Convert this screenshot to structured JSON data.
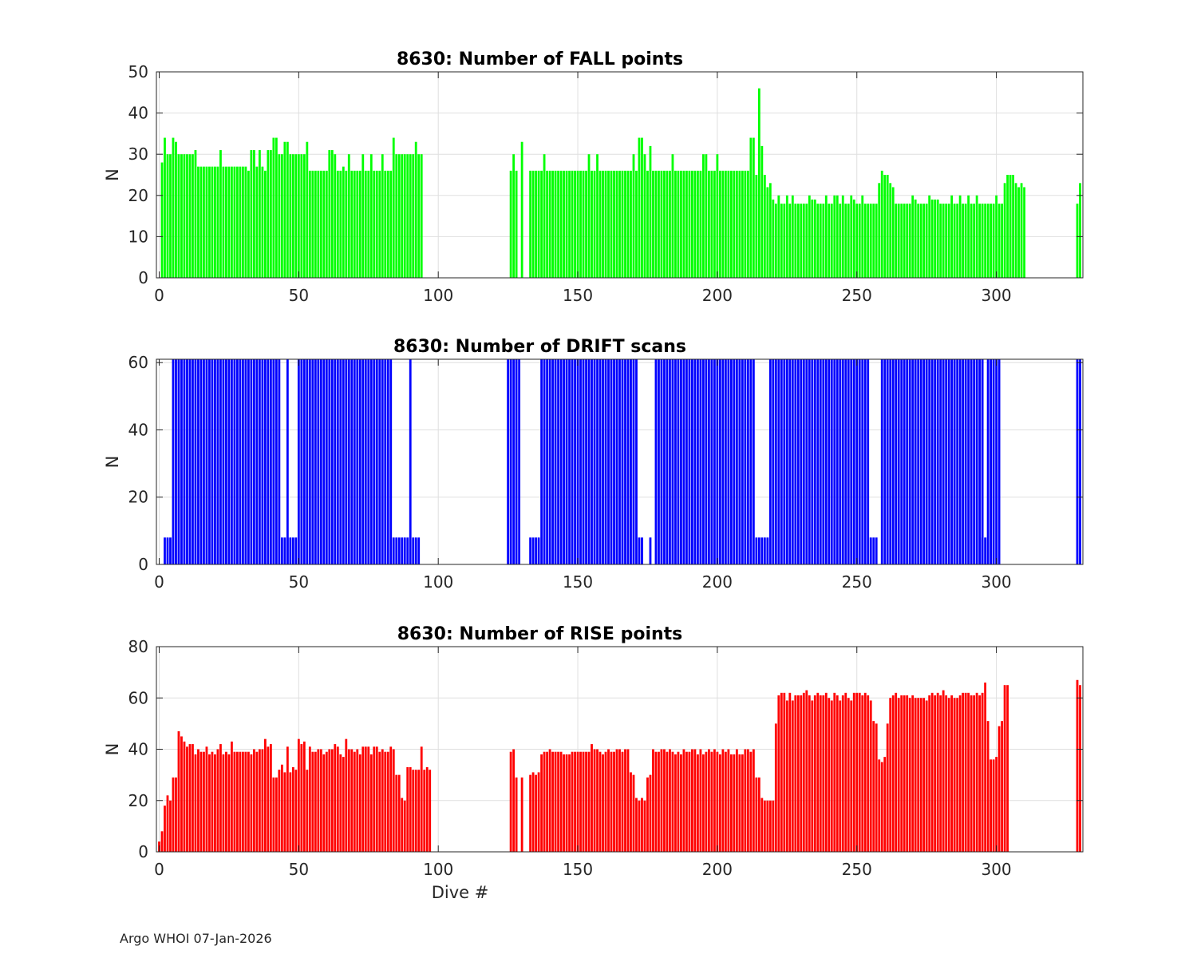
{
  "footer": "Argo WHOI 07-Jan-2026",
  "colors": {
    "fall": "#00ff00",
    "drift": "#0000ff",
    "rise": "#ff0000",
    "grid": "#dfdfdf",
    "axis": "#262626"
  },
  "chart_data": [
    {
      "type": "bar",
      "title": "8630: Number of FALL points",
      "xlabel": "",
      "ylabel": "N",
      "xlim": [
        -1,
        331
      ],
      "ylim": [
        0,
        50
      ],
      "xticks": [
        0,
        50,
        100,
        150,
        200,
        250,
        300
      ],
      "yticks": [
        0,
        10,
        20,
        30,
        40,
        50
      ],
      "color": "#00ff00",
      "segments": [
        {
          "start": 1,
          "values": [
            28,
            34,
            30,
            30,
            34,
            33,
            30,
            30,
            30,
            30,
            30,
            30,
            31,
            27,
            27,
            27,
            27,
            27,
            27,
            27,
            27,
            31,
            27,
            27,
            27,
            27,
            27,
            27,
            27,
            27,
            27,
            26,
            31,
            31,
            27,
            31,
            27,
            26,
            31,
            31,
            34,
            34,
            30,
            30,
            33,
            33,
            30,
            30,
            30,
            30,
            30,
            30,
            33,
            26,
            26,
            26,
            26,
            26,
            26,
            26,
            31,
            31,
            30,
            26,
            26,
            27,
            26,
            30,
            26,
            26,
            26,
            26,
            30,
            26,
            26,
            30,
            26,
            26,
            26,
            30,
            26,
            26,
            26,
            34,
            30,
            30,
            30,
            30,
            30,
            30,
            30,
            33,
            30,
            30
          ]
        },
        {
          "start": 126,
          "values": [
            26,
            30,
            26
          ]
        },
        {
          "start": 130,
          "values": [
            33
          ]
        },
        {
          "start": 133,
          "values": [
            26,
            26,
            26,
            26,
            26,
            30,
            26,
            26,
            26,
            26,
            26,
            26,
            26,
            26,
            26,
            26,
            26,
            26,
            26,
            26,
            26,
            30,
            26,
            26,
            30,
            26,
            26,
            26,
            26,
            26,
            26,
            26,
            26,
            26,
            26,
            26,
            26,
            30,
            26,
            34,
            34,
            30,
            26,
            32,
            26,
            26,
            26,
            26,
            26,
            26,
            26,
            30,
            26,
            26,
            26,
            26,
            26,
            26,
            26,
            26,
            26,
            26,
            30,
            30,
            26,
            26,
            26,
            30,
            26,
            26,
            26,
            26,
            26,
            26,
            26,
            26,
            26,
            26,
            26,
            34,
            34,
            25,
            46,
            32,
            25,
            22,
            23,
            19,
            18,
            20,
            18,
            18,
            20,
            18,
            20,
            18,
            18,
            18,
            18,
            18,
            20,
            19,
            19,
            18,
            18,
            18,
            20,
            18,
            18,
            20,
            20,
            18,
            20,
            18,
            18,
            20,
            19,
            18,
            18,
            20,
            18,
            18,
            18,
            18,
            18,
            23,
            26,
            25,
            25,
            23,
            22,
            18,
            18,
            18,
            18,
            18,
            18,
            20,
            19,
            18,
            18,
            18,
            18,
            20,
            19,
            19,
            19,
            18,
            18,
            18,
            18,
            20,
            18,
            18,
            20,
            18,
            18,
            20,
            18,
            18,
            20,
            18,
            18,
            18,
            18,
            18,
            18,
            20,
            18,
            18,
            23,
            25,
            25,
            25,
            23,
            22,
            23,
            22
          ]
        },
        {
          "start": 329,
          "values": [
            18,
            23
          ]
        }
      ]
    },
    {
      "type": "bar",
      "title": "8630: Number of DRIFT scans",
      "xlabel": "",
      "ylabel": "N",
      "xlim": [
        -1,
        331
      ],
      "ylim": [
        0,
        61
      ],
      "xticks": [
        0,
        50,
        100,
        150,
        200,
        250,
        300
      ],
      "yticks": [
        0,
        20,
        40,
        60
      ],
      "color": "#0000ff",
      "segments": [
        {
          "start": 2,
          "values": [
            8,
            8,
            8
          ]
        },
        {
          "start": 5,
          "values": [
            61,
            61,
            61,
            61,
            61,
            61,
            61,
            61,
            61,
            61,
            61,
            61,
            61,
            61,
            61,
            61,
            61,
            61,
            61,
            61,
            61,
            61,
            61,
            61,
            61,
            61,
            61,
            61,
            61,
            61,
            61,
            61,
            61,
            61,
            61,
            61,
            61,
            61,
            61
          ]
        },
        {
          "start": 44,
          "values": [
            8,
            8,
            8
          ]
        },
        {
          "start": 46,
          "values": [
            61
          ]
        },
        {
          "start": 47,
          "values": [
            8,
            8,
            8
          ]
        },
        {
          "start": 50,
          "values": [
            61,
            61,
            61,
            61,
            61,
            61,
            61,
            61,
            61,
            61,
            61,
            61,
            61,
            61,
            61,
            61,
            61,
            61,
            61,
            61,
            61,
            61,
            61,
            61,
            61,
            61,
            61,
            61,
            61,
            61,
            61,
            61,
            61,
            61
          ]
        },
        {
          "start": 84,
          "values": [
            8,
            8,
            8,
            8,
            8,
            8
          ]
        },
        {
          "start": 90,
          "values": [
            61
          ]
        },
        {
          "start": 91,
          "values": [
            8,
            8,
            8
          ]
        },
        {
          "start": 125,
          "values": [
            61,
            61,
            61,
            61,
            61
          ]
        },
        {
          "start": 133,
          "values": [
            8,
            8,
            8,
            8
          ]
        },
        {
          "start": 137,
          "values": [
            61,
            61,
            61,
            61,
            61,
            61,
            61,
            61,
            61,
            61,
            61,
            61,
            61,
            61,
            61,
            61,
            61,
            61,
            61,
            61,
            61,
            61,
            61,
            61,
            61,
            61,
            61,
            61,
            61,
            61,
            61,
            61,
            61,
            61,
            61
          ]
        },
        {
          "start": 172,
          "values": [
            8,
            8
          ]
        },
        {
          "start": 176,
          "values": [
            8
          ]
        },
        {
          "start": 178,
          "values": [
            61,
            61,
            61,
            61,
            61,
            61,
            61,
            61,
            61,
            61,
            61,
            61,
            61,
            61,
            61,
            61,
            61,
            61,
            61,
            61,
            61,
            61,
            61,
            61,
            61,
            61,
            61,
            61,
            61,
            61,
            61,
            61,
            61,
            61,
            61,
            61
          ]
        },
        {
          "start": 214,
          "values": [
            8,
            8,
            8,
            8,
            8
          ]
        },
        {
          "start": 219,
          "values": [
            61,
            61,
            61,
            61,
            61,
            61,
            61,
            61,
            61,
            61,
            61,
            61,
            61,
            61,
            61,
            61,
            61,
            61,
            61,
            61,
            61,
            61,
            61,
            61,
            61,
            61,
            61,
            61,
            61,
            61,
            61,
            61,
            61,
            61,
            61,
            61
          ]
        },
        {
          "start": 255,
          "values": [
            8,
            8,
            8
          ]
        },
        {
          "start": 259,
          "values": [
            61,
            61,
            61,
            61,
            61,
            61,
            61,
            61,
            61,
            61,
            61,
            61,
            61,
            61,
            61,
            61,
            61,
            61,
            61,
            61,
            61,
            61,
            61,
            61,
            61,
            61,
            61,
            61,
            61,
            61,
            61,
            61,
            61,
            61,
            61,
            61,
            61
          ]
        },
        {
          "start": 295,
          "values": [
            8,
            8,
            8
          ]
        },
        {
          "start": 297,
          "values": [
            61,
            61,
            61,
            61,
            61
          ]
        },
        {
          "start": 329,
          "values": [
            61,
            61
          ]
        }
      ]
    },
    {
      "type": "bar",
      "title": "8630: Number of RISE points",
      "xlabel": "Dive #",
      "ylabel": "N",
      "xlim": [
        -1,
        331
      ],
      "ylim": [
        0,
        80
      ],
      "xticks": [
        0,
        50,
        100,
        150,
        200,
        250,
        300
      ],
      "yticks": [
        0,
        20,
        40,
        60,
        80
      ],
      "color": "#ff0000",
      "segments": [
        {
          "start": 0,
          "values": [
            4,
            8,
            18,
            22,
            20,
            29,
            29,
            47,
            45,
            43,
            41,
            42,
            42,
            38,
            40,
            39,
            39,
            41,
            38,
            39,
            38,
            40,
            42,
            38,
            39,
            38,
            43,
            39,
            39,
            39,
            39,
            39,
            39,
            38,
            40,
            39,
            40,
            40,
            44,
            41,
            42,
            29,
            29,
            32,
            34,
            31,
            41,
            31,
            33,
            32,
            44,
            42,
            43,
            32,
            41,
            39,
            39,
            40,
            40,
            38,
            39,
            40,
            40,
            42,
            41,
            38,
            37,
            44,
            40,
            40,
            39,
            40,
            38,
            41,
            41,
            41,
            38,
            41,
            41,
            39,
            40,
            39,
            39,
            41,
            40,
            30,
            30,
            21,
            20,
            33,
            33,
            32,
            32,
            32,
            41,
            32,
            33,
            32
          ]
        },
        {
          "start": 126,
          "values": [
            39,
            40
          ]
        },
        {
          "start": 128,
          "values": [
            29
          ]
        },
        {
          "start": 130,
          "values": [
            29
          ]
        },
        {
          "start": 133,
          "values": [
            30,
            31,
            30,
            31,
            38,
            39,
            39,
            40,
            39,
            39,
            39,
            39,
            38,
            38,
            38,
            39,
            39,
            39,
            39,
            39,
            39,
            39,
            42,
            40,
            40,
            39,
            38,
            39,
            40,
            39,
            39,
            40,
            40,
            39,
            40,
            40,
            31,
            30,
            21,
            20,
            21,
            20,
            29,
            30,
            40,
            39,
            39,
            40,
            40,
            39,
            40,
            39,
            38,
            39,
            38,
            40,
            39,
            39,
            40,
            40,
            38,
            40,
            38,
            39,
            40,
            39,
            40,
            39,
            38,
            40,
            39,
            40,
            38,
            38,
            40,
            38,
            38,
            40,
            40,
            39,
            40,
            29,
            29,
            21,
            20,
            20,
            20,
            20,
            50,
            61,
            62,
            62,
            59,
            62,
            59,
            61,
            61,
            61,
            62,
            63,
            61,
            59,
            61,
            62,
            61,
            61,
            62,
            60,
            59,
            62,
            61,
            59,
            61,
            62,
            60,
            59,
            62,
            62,
            62,
            61,
            62,
            61,
            59,
            51,
            50,
            36,
            35,
            37,
            50,
            60,
            61,
            62,
            60,
            61,
            61,
            61,
            60,
            61,
            60,
            60,
            60,
            60,
            59,
            61,
            62,
            61,
            62,
            61,
            63,
            61,
            60,
            61,
            60,
            60,
            61,
            62,
            62,
            62,
            61,
            61,
            62,
            61,
            62,
            66,
            51,
            36,
            36,
            37,
            49,
            51,
            65,
            65
          ]
        },
        {
          "start": 329,
          "values": [
            67,
            65
          ]
        }
      ]
    }
  ]
}
